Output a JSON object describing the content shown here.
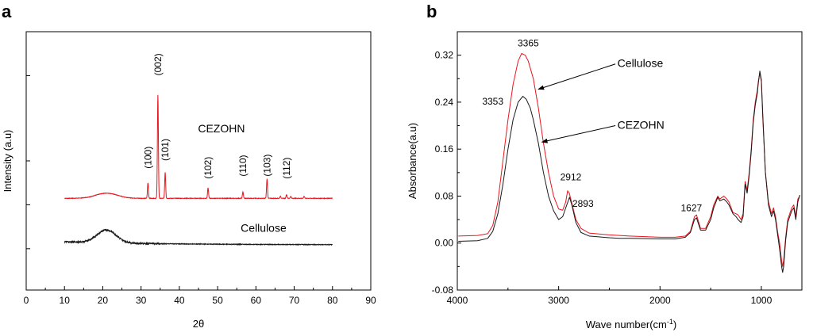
{
  "colors": {
    "red": "#e8141c",
    "black": "#1a1a1a",
    "axis": "#000000"
  },
  "chart_data": [
    {
      "type": "line",
      "panel_letter": "a",
      "xlabel": "2θ",
      "ylabel": "Intensity (a.u)",
      "xlim": [
        0,
        90
      ],
      "ylim": [
        0,
        1
      ],
      "xticks": [
        "0",
        "10",
        "20",
        "30",
        "40",
        "50",
        "60",
        "70",
        "80",
        "90"
      ],
      "xtick_values": [
        0,
        10,
        20,
        30,
        40,
        50,
        60,
        70,
        80,
        90
      ],
      "series": [
        {
          "name": "CEZOHN",
          "color": "red",
          "baseline": 0.355,
          "x_range": [
            10,
            80
          ],
          "hump": {
            "center": 21,
            "width": 4,
            "height": 0.02
          },
          "peaks": [
            {
              "x": 31.8,
              "h": 0.06
            },
            {
              "x": 34.4,
              "h": 0.4
            },
            {
              "x": 36.3,
              "h": 0.1
            },
            {
              "x": 47.5,
              "h": 0.04
            },
            {
              "x": 56.6,
              "h": 0.025
            },
            {
              "x": 62.9,
              "h": 0.075
            },
            {
              "x": 66.4,
              "h": 0.008
            },
            {
              "x": 68.0,
              "h": 0.015
            },
            {
              "x": 69.1,
              "h": 0.008
            },
            {
              "x": 72.6,
              "h": 0.008
            }
          ]
        },
        {
          "name": "Cellulose",
          "color": "black",
          "baseline": 0.175,
          "x_range": [
            10,
            80
          ],
          "hump": {
            "center": 21,
            "width": 3.5,
            "height": 0.05
          },
          "peaks": []
        }
      ],
      "annotations": [
        {
          "text": "(100)",
          "x": 31.8,
          "y": 0.47
        },
        {
          "text": "(002)",
          "x": 34.4,
          "y": 0.83
        },
        {
          "text": "(101)",
          "x": 36.3,
          "y": 0.5
        },
        {
          "text": "(102)",
          "x": 47.5,
          "y": 0.43
        },
        {
          "text": "(110)",
          "x": 56.6,
          "y": 0.44
        },
        {
          "text": "(103)",
          "x": 62.9,
          "y": 0.44
        },
        {
          "text": "(112)",
          "x": 68.0,
          "y": 0.43
        }
      ],
      "series_labels": [
        {
          "text": "CEZOHN",
          "x": 51,
          "y": 0.61
        },
        {
          "text": "Cellulose",
          "x": 62,
          "y": 0.225
        }
      ]
    },
    {
      "type": "line",
      "panel_letter": "b",
      "xlabel": "Wave number(cm",
      "xlabel_sup": "-1",
      "xlabel_close": ")",
      "ylabel": "Absorbance(a.u)",
      "xlim": [
        4000,
        600
      ],
      "ylim": [
        -0.08,
        0.36
      ],
      "xticks": [
        "4000",
        "3000",
        "2000",
        "1000"
      ],
      "xtick_values": [
        4000,
        3000,
        2000,
        1000
      ],
      "yticks": [
        "-0.08",
        "0.00",
        "0.08",
        "0.16",
        "0.24",
        "0.32"
      ],
      "ytick_values": [
        -0.08,
        0.0,
        0.08,
        0.16,
        0.24,
        0.32
      ],
      "series": [
        {
          "name": "Cellulose",
          "color": "red",
          "points": [
            [
              3990,
              0.012
            ],
            [
              3800,
              0.013
            ],
            [
              3700,
              0.016
            ],
            [
              3650,
              0.03
            ],
            [
              3600,
              0.07
            ],
            [
              3550,
              0.14
            ],
            [
              3500,
              0.21
            ],
            [
              3450,
              0.27
            ],
            [
              3400,
              0.31
            ],
            [
              3365,
              0.323
            ],
            [
              3330,
              0.32
            ],
            [
              3300,
              0.31
            ],
            [
              3250,
              0.28
            ],
            [
              3200,
              0.23
            ],
            [
              3150,
              0.17
            ],
            [
              3100,
              0.12
            ],
            [
              3050,
              0.08
            ],
            [
              3000,
              0.058
            ],
            [
              2960,
              0.056
            ],
            [
              2930,
              0.07
            ],
            [
              2912,
              0.089
            ],
            [
              2895,
              0.085
            ],
            [
              2870,
              0.068
            ],
            [
              2830,
              0.04
            ],
            [
              2780,
              0.025
            ],
            [
              2700,
              0.017
            ],
            [
              2500,
              0.014
            ],
            [
              2400,
              0.013
            ],
            [
              2300,
              0.012
            ],
            [
              2000,
              0.01
            ],
            [
              1850,
              0.01
            ],
            [
              1750,
              0.012
            ],
            [
              1700,
              0.02
            ],
            [
              1660,
              0.045
            ],
            [
              1640,
              0.048
            ],
            [
              1600,
              0.025
            ],
            [
              1550,
              0.025
            ],
            [
              1500,
              0.045
            ],
            [
              1470,
              0.065
            ],
            [
              1430,
              0.08
            ],
            [
              1410,
              0.075
            ],
            [
              1370,
              0.08
            ],
            [
              1340,
              0.075
            ],
            [
              1320,
              0.07
            ],
            [
              1280,
              0.052
            ],
            [
              1250,
              0.05
            ],
            [
              1230,
              0.048
            ],
            [
              1200,
              0.04
            ],
            [
              1180,
              0.05
            ],
            [
              1160,
              0.105
            ],
            [
              1140,
              0.09
            ],
            [
              1120,
              0.12
            ],
            [
              1100,
              0.16
            ],
            [
              1080,
              0.21
            ],
            [
              1060,
              0.24
            ],
            [
              1040,
              0.26
            ],
            [
              1030,
              0.275
            ],
            [
              1015,
              0.29
            ],
            [
              1000,
              0.275
            ],
            [
              985,
              0.21
            ],
            [
              960,
              0.12
            ],
            [
              930,
              0.07
            ],
            [
              900,
              0.05
            ],
            [
              880,
              0.06
            ],
            [
              860,
              0.045
            ],
            [
              840,
              0.02
            ],
            [
              820,
              0.0
            ],
            [
              800,
              -0.03
            ],
            [
              790,
              -0.04
            ],
            [
              780,
              -0.03
            ],
            [
              760,
              0.01
            ],
            [
              740,
              0.04
            ],
            [
              720,
              0.05
            ],
            [
              700,
              0.06
            ],
            [
              680,
              0.065
            ],
            [
              660,
              0.045
            ],
            [
              640,
              0.075
            ],
            [
              620,
              0.08
            ]
          ]
        },
        {
          "name": "CEZOHN",
          "color": "black",
          "points": [
            [
              3990,
              0.003
            ],
            [
              3800,
              0.004
            ],
            [
              3700,
              0.008
            ],
            [
              3650,
              0.02
            ],
            [
              3600,
              0.05
            ],
            [
              3550,
              0.1
            ],
            [
              3500,
              0.16
            ],
            [
              3450,
              0.21
            ],
            [
              3400,
              0.24
            ],
            [
              3353,
              0.25
            ],
            [
              3320,
              0.245
            ],
            [
              3280,
              0.23
            ],
            [
              3250,
              0.21
            ],
            [
              3200,
              0.17
            ],
            [
              3150,
              0.12
            ],
            [
              3100,
              0.08
            ],
            [
              3050,
              0.055
            ],
            [
              3000,
              0.04
            ],
            [
              2960,
              0.045
            ],
            [
              2930,
              0.06
            ],
            [
              2893,
              0.078
            ],
            [
              2870,
              0.065
            ],
            [
              2830,
              0.035
            ],
            [
              2780,
              0.018
            ],
            [
              2700,
              0.012
            ],
            [
              2500,
              0.009
            ],
            [
              2400,
              0.008
            ],
            [
              2300,
              0.008
            ],
            [
              2000,
              0.007
            ],
            [
              1850,
              0.007
            ],
            [
              1750,
              0.01
            ],
            [
              1700,
              0.018
            ],
            [
              1660,
              0.04
            ],
            [
              1640,
              0.043
            ],
            [
              1600,
              0.022
            ],
            [
              1550,
              0.022
            ],
            [
              1500,
              0.04
            ],
            [
              1470,
              0.06
            ],
            [
              1430,
              0.078
            ],
            [
              1410,
              0.072
            ],
            [
              1370,
              0.075
            ],
            [
              1340,
              0.07
            ],
            [
              1320,
              0.065
            ],
            [
              1280,
              0.05
            ],
            [
              1250,
              0.045
            ],
            [
              1230,
              0.04
            ],
            [
              1200,
              0.035
            ],
            [
              1180,
              0.045
            ],
            [
              1160,
              0.1
            ],
            [
              1140,
              0.085
            ],
            [
              1120,
              0.115
            ],
            [
              1100,
              0.155
            ],
            [
              1080,
              0.205
            ],
            [
              1060,
              0.235
            ],
            [
              1040,
              0.255
            ],
            [
              1030,
              0.272
            ],
            [
              1015,
              0.293
            ],
            [
              1000,
              0.278
            ],
            [
              985,
              0.215
            ],
            [
              960,
              0.12
            ],
            [
              930,
              0.065
            ],
            [
              900,
              0.045
            ],
            [
              880,
              0.055
            ],
            [
              860,
              0.04
            ],
            [
              840,
              0.015
            ],
            [
              820,
              -0.01
            ],
            [
              800,
              -0.04
            ],
            [
              790,
              -0.05
            ],
            [
              780,
              -0.04
            ],
            [
              760,
              0.005
            ],
            [
              740,
              0.035
            ],
            [
              720,
              0.045
            ],
            [
              700,
              0.055
            ],
            [
              680,
              0.06
            ],
            [
              660,
              0.04
            ],
            [
              640,
              0.07
            ],
            [
              620,
              0.082
            ]
          ]
        }
      ],
      "annotations": [
        {
          "text": "3365",
          "x": 3300,
          "y": 0.335
        },
        {
          "text": "3353",
          "x": 3650,
          "y": 0.236
        },
        {
          "text": "2912",
          "x": 2880,
          "y": 0.107
        },
        {
          "text": "2893",
          "x": 2760,
          "y": 0.062
        },
        {
          "text": "1627",
          "x": 1690,
          "y": 0.054
        }
      ],
      "series_labels": [
        {
          "text": "Cellulose",
          "x": 2420,
          "y": 0.3
        },
        {
          "text": "CEZOHN",
          "x": 2420,
          "y": 0.195
        }
      ],
      "arrows": [
        {
          "from": [
            2440,
            0.305
          ],
          "to": [
            3200,
            0.262
          ]
        },
        {
          "from": [
            2440,
            0.2
          ],
          "to": [
            3165,
            0.172
          ]
        }
      ]
    }
  ]
}
